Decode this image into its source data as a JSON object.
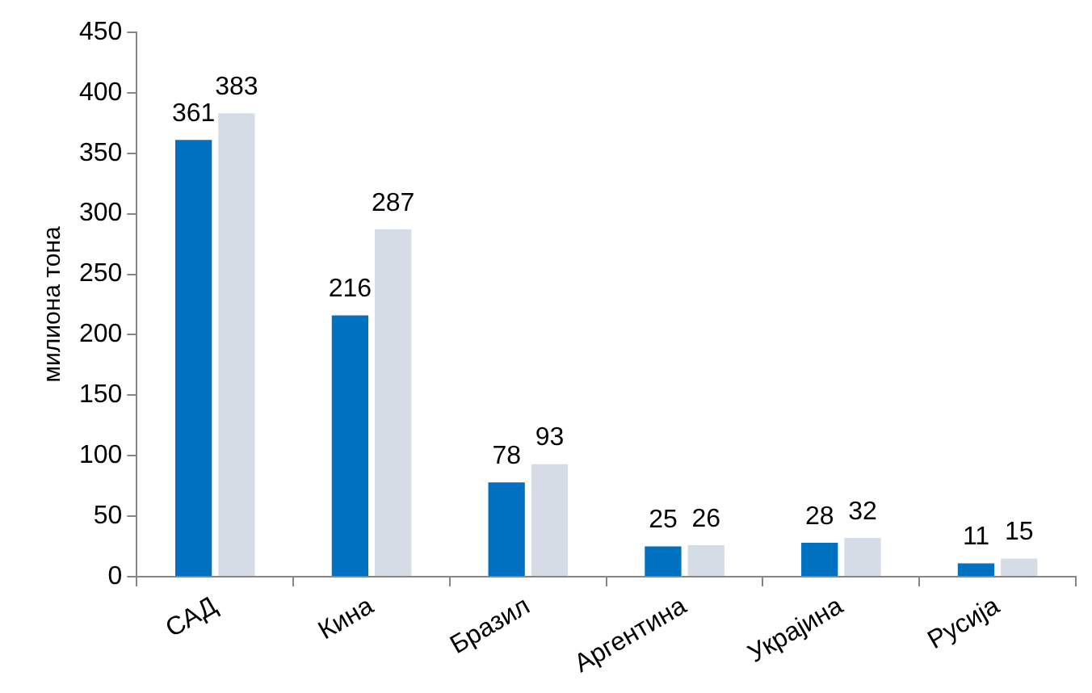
{
  "chart_data": {
    "type": "bar",
    "ylabel": "милиона тона",
    "categories": [
      "САД",
      "Кина",
      "Бразил",
      "Аргентина",
      "Украјина",
      "Русија"
    ],
    "series": [
      {
        "color": "#0070c0",
        "values": [
          361,
          216,
          78,
          25,
          28,
          11
        ]
      },
      {
        "color": "#d6dce5",
        "values": [
          383,
          287,
          93,
          26,
          32,
          15
        ]
      }
    ],
    "ylim": [
      0,
      450
    ],
    "yticks": [
      0,
      50,
      100,
      150,
      200,
      250,
      300,
      350,
      400,
      450
    ],
    "grid": false,
    "legend": false,
    "data_labels": true
  }
}
